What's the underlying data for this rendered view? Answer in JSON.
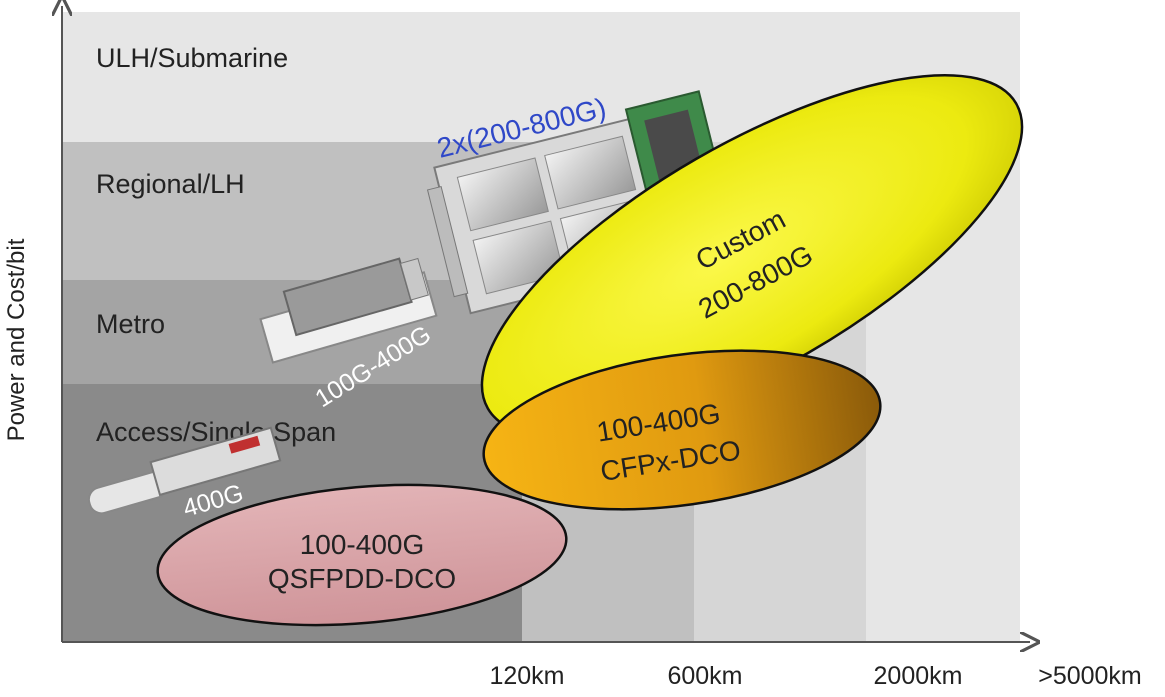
{
  "axes": {
    "y_label": "Power and Cost/bit",
    "x_ticks": [
      "120km",
      "600km",
      "2000km",
      ">5000km"
    ]
  },
  "tiers": [
    {
      "label": "ULH/Submarine"
    },
    {
      "label": "Regional/LH"
    },
    {
      "label": "Metro"
    },
    {
      "label": "Access/Single Span"
    }
  ],
  "products": {
    "custom": {
      "line1": "Custom",
      "line2": "200-800G"
    },
    "cfpx": {
      "line1": "100-400G",
      "line2": "CFPx-DCO"
    },
    "qsfpdd": {
      "line1": "100-400G",
      "line2": "QSFPDD-DCO"
    }
  },
  "module_labels": {
    "large": "2x(200-800G)",
    "medium": "100G-400G",
    "small": "400G"
  },
  "colors": {
    "custom": "#f2ef1a",
    "cfpx": "#e3a014",
    "qsfpdd": "#d8a2a6",
    "module_label_blue": "#2f48c8"
  }
}
